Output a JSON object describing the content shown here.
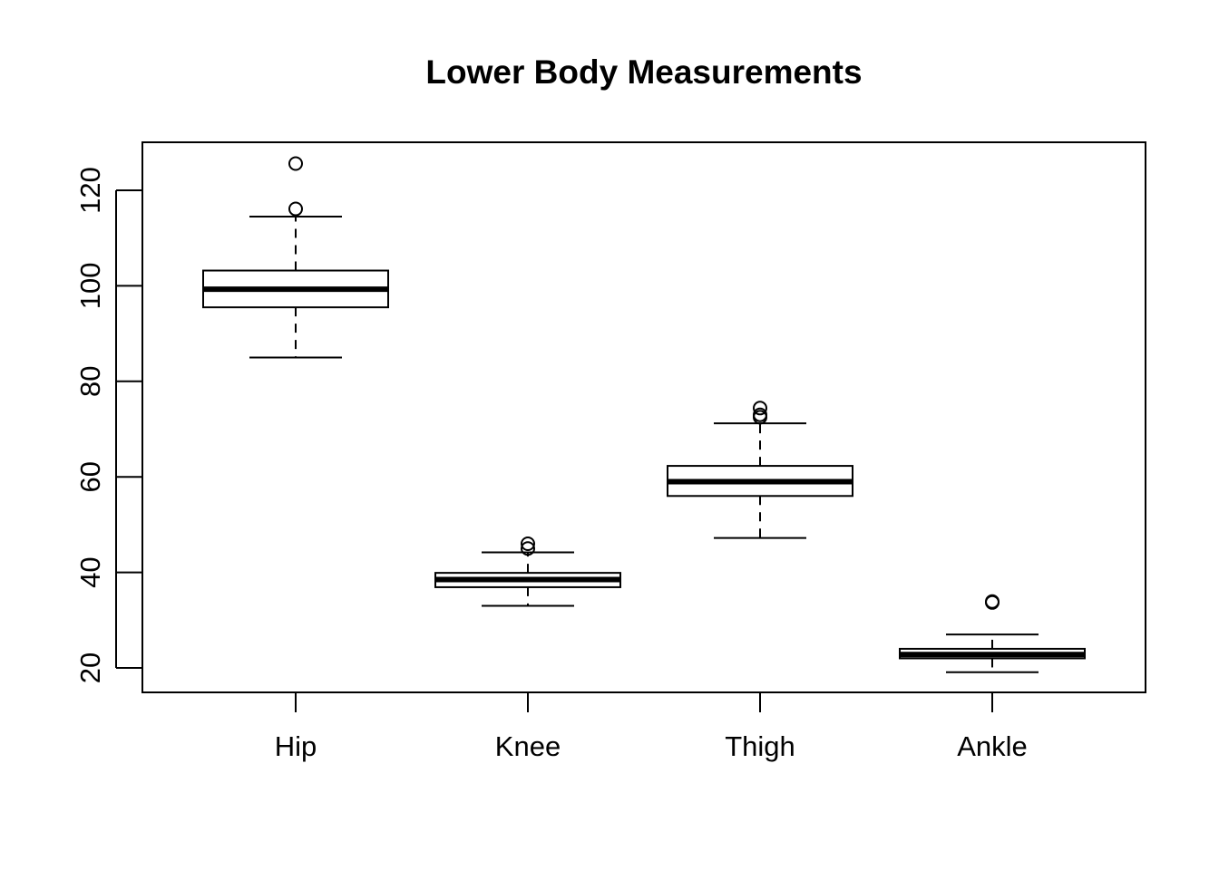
{
  "chart_data": {
    "type": "boxplot",
    "title": "Lower Body Measurements",
    "xlabel": "",
    "ylabel": "",
    "ylim": [
      15,
      130
    ],
    "yticks": [
      20,
      40,
      60,
      80,
      100,
      120
    ],
    "categories": [
      "Hip",
      "Knee",
      "Thigh",
      "Ankle"
    ],
    "boxes": [
      {
        "category": "Hip",
        "whisker_low": 85.0,
        "q1": 95.5,
        "median": 99.3,
        "q3": 103.2,
        "whisker_high": 114.5,
        "outliers": [
          116.1,
          125.6
        ]
      },
      {
        "category": "Knee",
        "whisker_low": 33.0,
        "q1": 36.9,
        "median": 38.5,
        "q3": 39.9,
        "whisker_high": 44.2,
        "outliers": [
          45.0,
          46.0
        ]
      },
      {
        "category": "Thigh",
        "whisker_low": 47.2,
        "q1": 56.0,
        "median": 59.0,
        "q3": 62.3,
        "whisker_high": 71.2,
        "outliers": [
          72.5,
          73.0,
          74.4
        ]
      },
      {
        "category": "Ankle",
        "whisker_low": 19.1,
        "q1": 22.0,
        "median": 22.8,
        "q3": 24.0,
        "whisker_high": 27.0,
        "outliers": [
          33.7,
          33.9
        ]
      }
    ],
    "grid": false,
    "legend": "none",
    "colors": {
      "box_fill": "#ffffff",
      "stroke": "#000000"
    }
  }
}
